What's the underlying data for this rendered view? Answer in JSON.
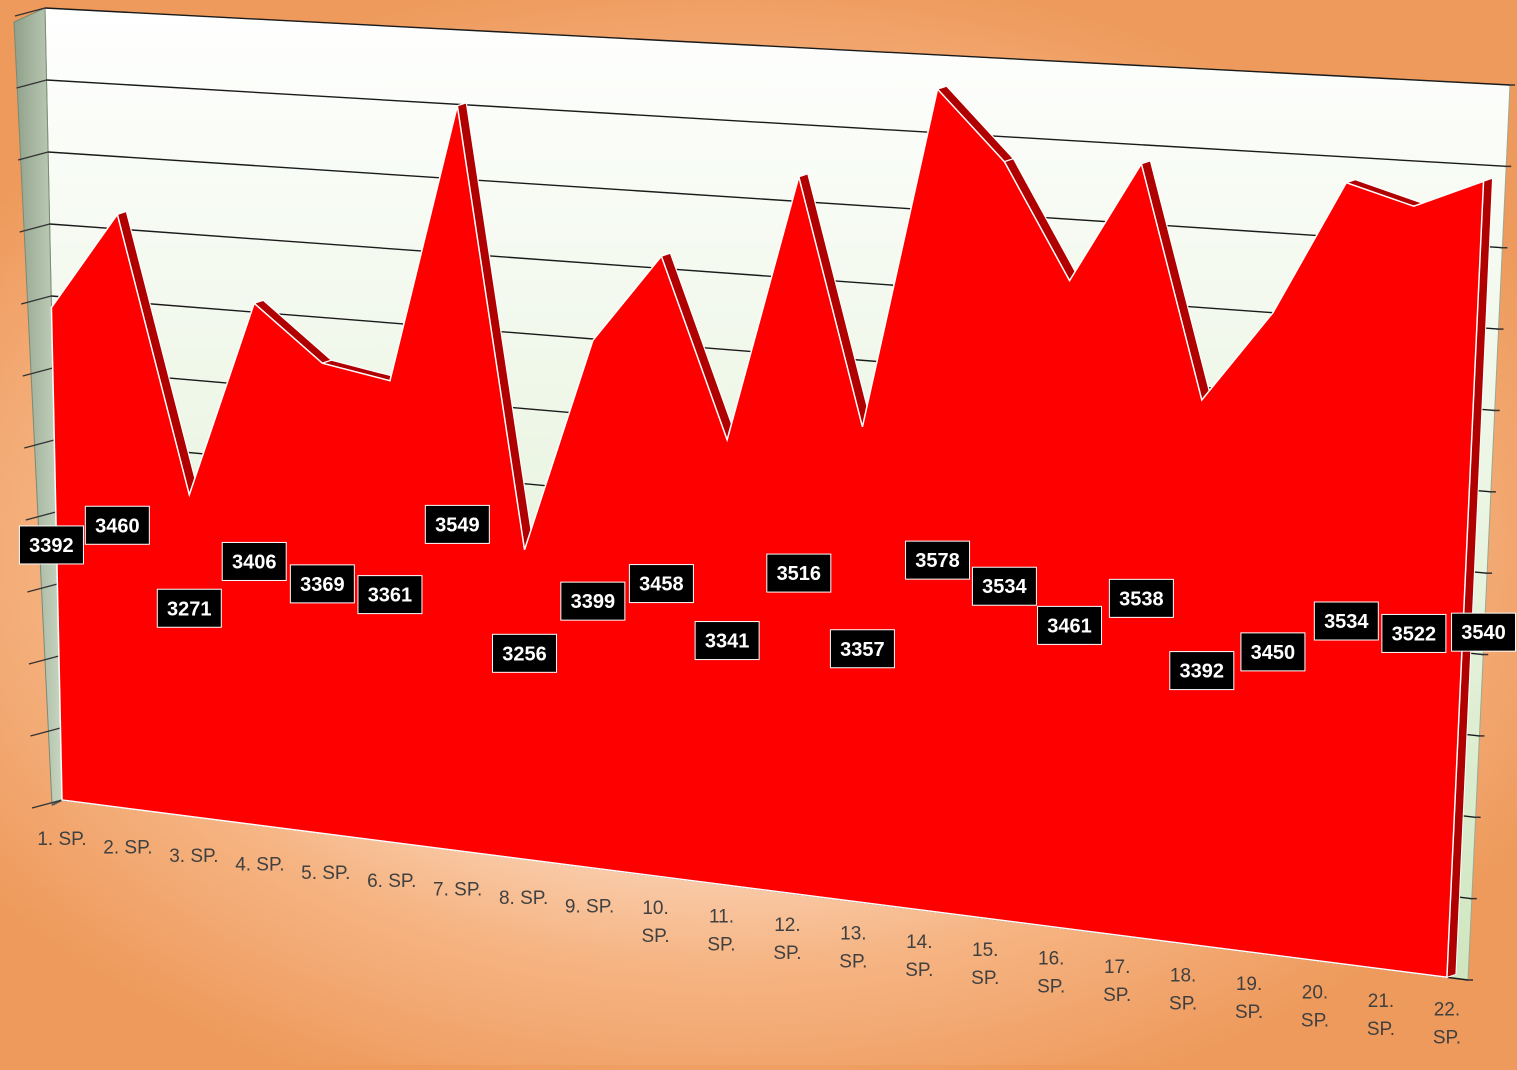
{
  "chart_data": {
    "type": "area",
    "title": "",
    "xlabel": "",
    "ylabel": "",
    "categories": [
      "1. SP.",
      "2. SP.",
      "3. SP.",
      "4. SP.",
      "5. SP.",
      "6. SP.",
      "7. SP.",
      "8. SP.",
      "9. SP.",
      "10. SP.",
      "11. SP.",
      "12. SP.",
      "13. SP.",
      "14. SP.",
      "15. SP.",
      "16. SP.",
      "17. SP.",
      "18. SP.",
      "19. SP.",
      "20. SP.",
      "21. SP.",
      "22. SP."
    ],
    "series": [
      {
        "values": [
          3392,
          3460,
          3271,
          3406,
          3369,
          3361,
          3549,
          3256,
          3399,
          3458,
          3341,
          3516,
          3357,
          3578,
          3534,
          3461,
          3538,
          3392,
          3450,
          3534,
          3522,
          3540
        ],
        "color": "#ff0000"
      }
    ],
    "ylim": [
      3050,
      3600
    ],
    "grid": true,
    "legend": "none",
    "style": "3d-perspective",
    "colors": {
      "area": "#ff0000",
      "area_edge": "#b00000",
      "wall": "#e6f2dc",
      "label_box": "#000000",
      "label_text": "#ffffff"
    }
  }
}
